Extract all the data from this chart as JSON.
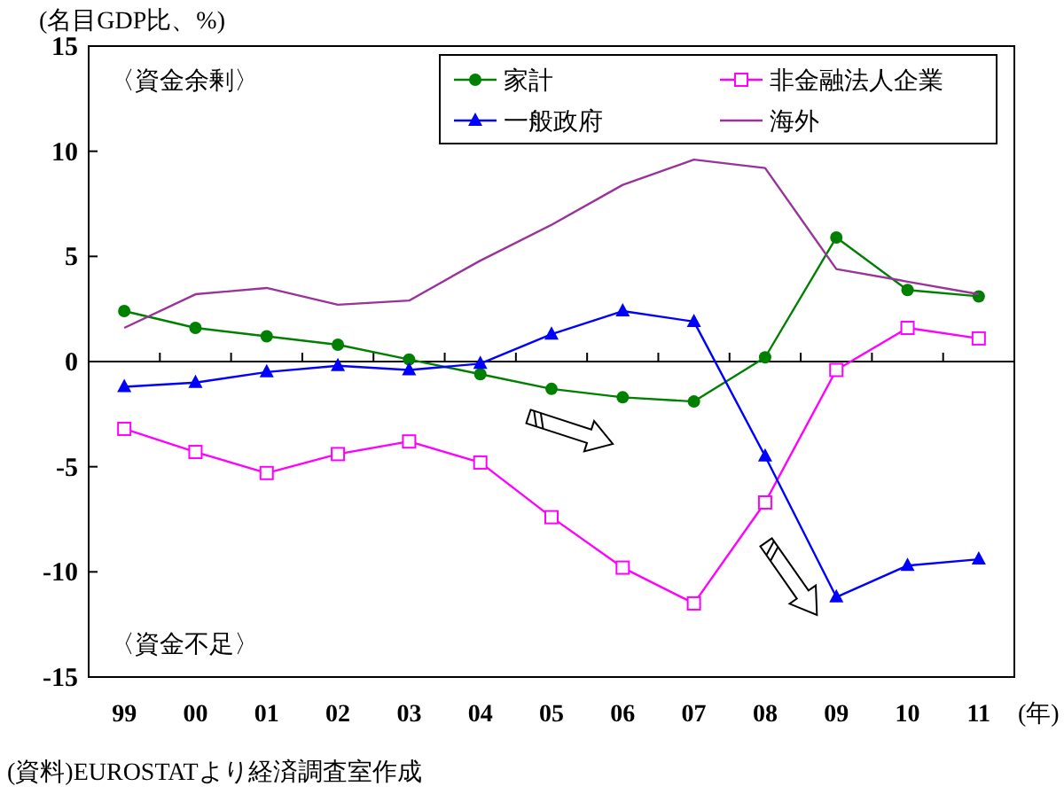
{
  "chart_data": {
    "type": "line",
    "ylabel": "(名目GDP比、%)",
    "xlabel": "(年)",
    "categories": [
      "99",
      "00",
      "01",
      "02",
      "03",
      "04",
      "05",
      "06",
      "07",
      "08",
      "09",
      "10",
      "11"
    ],
    "series": [
      {
        "name": "家計",
        "color": "#008000",
        "marker": "circle",
        "values": [
          2.4,
          1.6,
          1.2,
          0.8,
          0.1,
          -0.6,
          -1.3,
          -1.7,
          -1.9,
          0.2,
          5.9,
          3.4,
          3.1
        ]
      },
      {
        "name": "非金融法人企業",
        "color": "#ff00ff",
        "marker": "square",
        "values": [
          -3.2,
          -4.3,
          -5.3,
          -4.4,
          -3.8,
          -4.8,
          -7.4,
          -9.8,
          -11.5,
          -6.7,
          -0.4,
          1.6,
          1.1
        ]
      },
      {
        "name": "一般政府",
        "color": "#0000ff",
        "marker": "triangle",
        "values": [
          -1.2,
          -1.0,
          -0.5,
          -0.2,
          -0.4,
          -0.1,
          1.3,
          2.4,
          1.9,
          -4.5,
          -11.2,
          -9.7,
          -9.4
        ]
      },
      {
        "name": "海外",
        "color": "#993399",
        "marker": "none",
        "values": [
          1.6,
          3.2,
          3.5,
          2.7,
          2.9,
          4.8,
          6.5,
          8.4,
          9.6,
          9.2,
          4.4,
          3.8,
          3.2
        ]
      }
    ],
    "ylim": [
      -15,
      15
    ],
    "yticks": [
      -15,
      -10,
      -5,
      0,
      5,
      10,
      15
    ],
    "legend": "top right",
    "annotations": [
      "〈資金余剰〉",
      "〈資金不足〉",
      "(資料)EUROSTATより経済調査室作成"
    ]
  }
}
